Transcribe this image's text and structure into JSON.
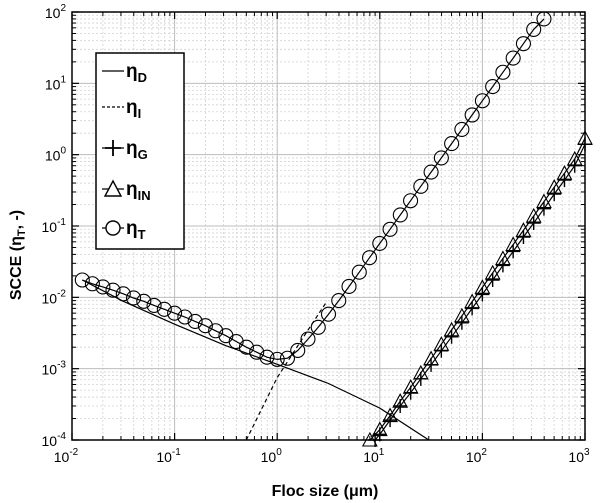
{
  "chart_data": {
    "type": "line",
    "xlabel": "Floc size (μm)",
    "ylabel": "SCCE (η",
    "ylabel_sub": "T",
    "ylabel_suffix": ", -)",
    "x_scale": "log",
    "y_scale": "log",
    "xlim": [
      0.01,
      1000
    ],
    "ylim": [
      0.0001,
      100
    ],
    "grid": true,
    "minor_grid": true,
    "legend_position": "upper-left",
    "x_ticks": [
      {
        "base": "10",
        "exp": "-2"
      },
      {
        "base": "10",
        "exp": "-1"
      },
      {
        "base": "10",
        "exp": "0"
      },
      {
        "base": "10",
        "exp": "1"
      },
      {
        "base": "10",
        "exp": "2"
      },
      {
        "base": "10",
        "exp": "3"
      }
    ],
    "y_ticks": [
      {
        "base": "10",
        "exp": "-4"
      },
      {
        "base": "10",
        "exp": "-3"
      },
      {
        "base": "10",
        "exp": "-2"
      },
      {
        "base": "10",
        "exp": "-1"
      },
      {
        "base": "10",
        "exp": "0"
      },
      {
        "base": "10",
        "exp": "1"
      },
      {
        "base": "10",
        "exp": "2"
      }
    ],
    "series": [
      {
        "name": "η",
        "sub": "D",
        "line": "solid",
        "marker": "none",
        "x": [
          0.0126,
          0.0316,
          0.1,
          0.316,
          1,
          3.16,
          10,
          30
        ],
        "y": [
          0.0175,
          0.0088,
          0.0042,
          0.0021,
          0.00115,
          0.00062,
          0.00028,
          0.0001
        ]
      },
      {
        "name": "η",
        "sub": "I",
        "line": "dashed",
        "marker": "none",
        "x": [
          0.5,
          1,
          2,
          3
        ],
        "y": [
          0.0001,
          0.00075,
          0.0035,
          0.0085
        ]
      },
      {
        "name": "η",
        "sub": "G",
        "line": "solid",
        "marker": "plus",
        "x": [
          9,
          10,
          12.6,
          15.8,
          20,
          25.1,
          31.6,
          39.8,
          50.1,
          63.1,
          79.4,
          100,
          125.9,
          158.5,
          199.5,
          251.2,
          316.2,
          398.1,
          501.2,
          631,
          794.3,
          1000
        ],
        "y": [
          0.0001,
          0.00012,
          0.00019,
          0.0003,
          0.00046,
          0.00072,
          0.00113,
          0.00178,
          0.0028,
          0.0044,
          0.007,
          0.011,
          0.0175,
          0.028,
          0.044,
          0.07,
          0.11,
          0.175,
          0.28,
          0.44,
          0.7,
          1.4
        ]
      },
      {
        "name": "η",
        "sub": "IN",
        "line": "solid",
        "marker": "triangle",
        "x": [
          8,
          10,
          12.6,
          15.8,
          20,
          25.1,
          31.6,
          39.8,
          50.1,
          63.1,
          79.4,
          100,
          125.9,
          158.5,
          199.5,
          251.2,
          316.2,
          398.1,
          501.2,
          631,
          794.3,
          1000
        ],
        "y": [
          0.0001,
          0.00014,
          0.00022,
          0.00035,
          0.00055,
          0.00087,
          0.00138,
          0.0022,
          0.0035,
          0.0055,
          0.0087,
          0.0138,
          0.022,
          0.035,
          0.055,
          0.087,
          0.138,
          0.22,
          0.35,
          0.55,
          0.87,
          1.7
        ]
      },
      {
        "name": "η",
        "sub": "T",
        "line": "solid",
        "marker": "circle",
        "x": [
          0.0126,
          0.0158,
          0.02,
          0.0251,
          0.0316,
          0.0398,
          0.0501,
          0.0631,
          0.0794,
          0.1,
          0.1259,
          0.1585,
          0.1995,
          0.2512,
          0.3162,
          0.3981,
          0.5012,
          0.631,
          0.7943,
          1,
          1.259,
          1.585,
          1.995,
          2.512,
          3.162,
          3.981,
          5.012,
          6.31,
          7.943,
          10,
          12.59,
          15.85,
          19.95,
          25.12,
          31.62,
          39.81,
          50.12,
          63.1,
          79.43,
          100,
          125.9,
          158.5,
          199.5,
          251.2,
          316.2,
          398.1
        ],
        "y": [
          0.0175,
          0.0155,
          0.014,
          0.0126,
          0.0112,
          0.0098,
          0.0088,
          0.0077,
          0.0068,
          0.006,
          0.0053,
          0.0046,
          0.004,
          0.0034,
          0.0029,
          0.0024,
          0.002,
          0.0017,
          0.00145,
          0.00135,
          0.0014,
          0.0018,
          0.0026,
          0.0038,
          0.0058,
          0.009,
          0.0142,
          0.0225,
          0.036,
          0.057,
          0.09,
          0.143,
          0.226,
          0.36,
          0.57,
          0.9,
          1.43,
          2.26,
          3.6,
          5.7,
          9,
          14.3,
          22.6,
          36,
          57,
          80
        ]
      }
    ]
  }
}
